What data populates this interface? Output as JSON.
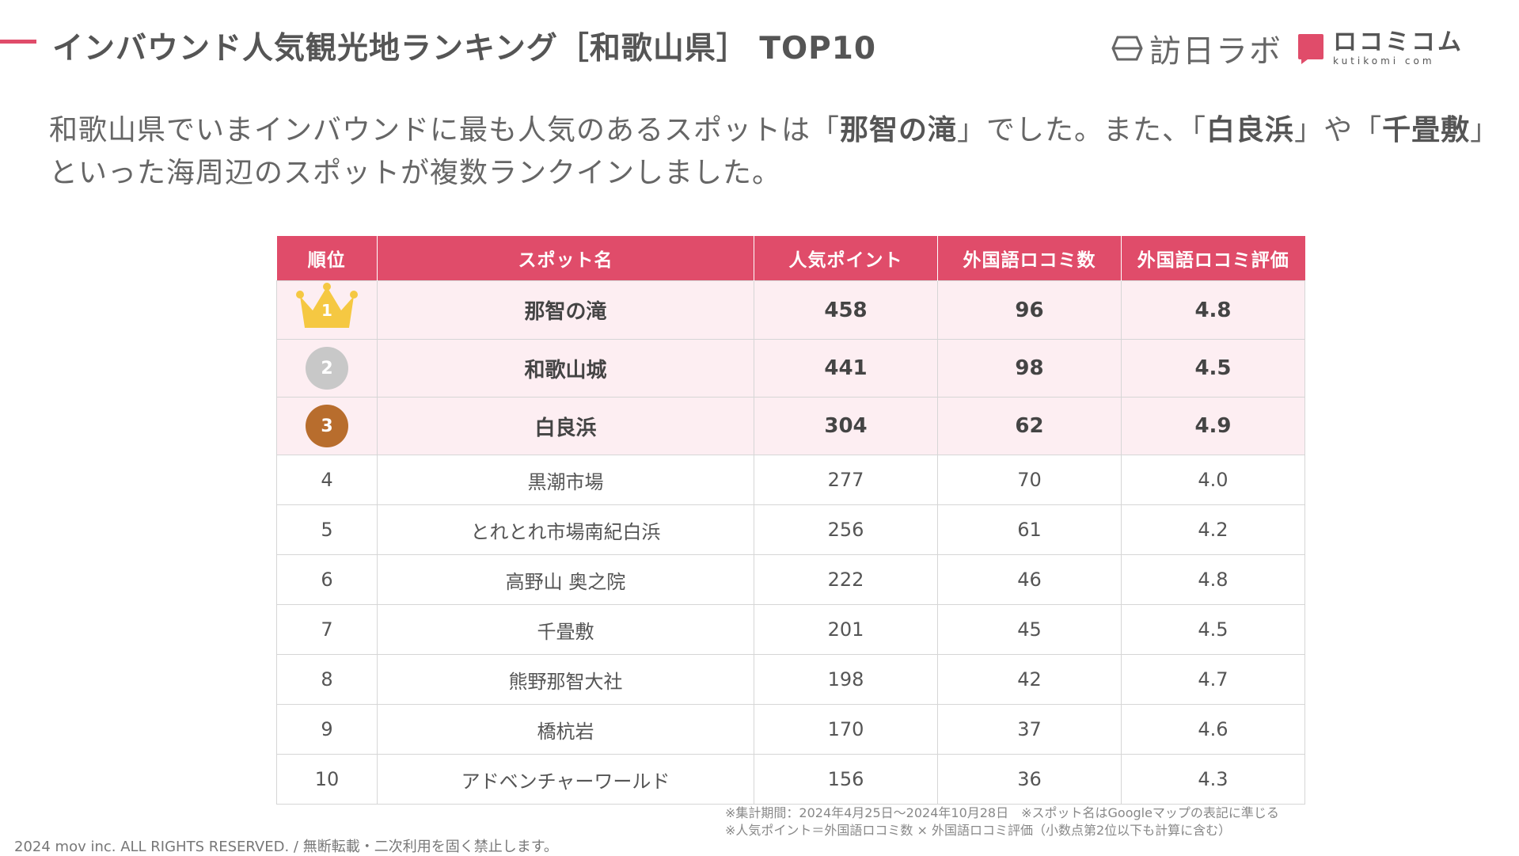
{
  "header": {
    "title": "インバウンド人気観光地ランキング［和歌山県］ TOP10",
    "logo_homonichi": "訪日ラボ",
    "logo_kuchikomi_main": "ロコミコム",
    "logo_kuchikomi_sub": "kutikomi com"
  },
  "lead": {
    "p1": "和歌山県でいまインバウンドに最も人気のあるスポットは「",
    "b1": "那智の滝",
    "p2": "」でした。また、「",
    "b2": "白良浜",
    "p3": "」や「",
    "b3": "千畳敷",
    "p4": "」といった海周辺のスポットが複数ランクインしました。"
  },
  "table": {
    "headers": [
      "順位",
      "スポット名",
      "人気ポイント",
      "外国語ロコミ数",
      "外国語ロコミ評価"
    ],
    "rows": [
      {
        "rank": "1",
        "name": "那智の滝",
        "points": "458",
        "reviews": "96",
        "rating": "4.8",
        "medal": "gold-crown"
      },
      {
        "rank": "2",
        "name": "和歌山城",
        "points": "441",
        "reviews": "98",
        "rating": "4.5",
        "medal": "silver"
      },
      {
        "rank": "3",
        "name": "白良浜",
        "points": "304",
        "reviews": "62",
        "rating": "4.9",
        "medal": "bronze"
      },
      {
        "rank": "4",
        "name": "黒潮市場",
        "points": "277",
        "reviews": "70",
        "rating": "4.0"
      },
      {
        "rank": "5",
        "name": "とれとれ市場南紀白浜",
        "points": "256",
        "reviews": "61",
        "rating": "4.2"
      },
      {
        "rank": "6",
        "name": "高野山 奥之院",
        "points": "222",
        "reviews": "46",
        "rating": "4.8"
      },
      {
        "rank": "7",
        "name": "千畳敷",
        "points": "201",
        "reviews": "45",
        "rating": "4.5"
      },
      {
        "rank": "8",
        "name": "熊野那智大社",
        "points": "198",
        "reviews": "42",
        "rating": "4.7"
      },
      {
        "rank": "9",
        "name": "橋杭岩",
        "points": "170",
        "reviews": "37",
        "rating": "4.6"
      },
      {
        "rank": "10",
        "name": "アドベンチャーワールド",
        "points": "156",
        "reviews": "36",
        "rating": "4.3"
      }
    ]
  },
  "notes": {
    "line1": "※集計期間：2024年4月25日〜2024年10月28日　※スポット名はGoogleマップの表記に準じる",
    "line2": "※人気ポイント＝外国語ロコミ数 × 外国語ロコミ評価（小数点第2位以下も計算に含む）"
  },
  "footer": {
    "copyright": "2024 mov inc. ALL RIGHTS RESERVED. / 無断転載・二次利用を固く禁止します。"
  },
  "colors": {
    "accent": "#e04c6a",
    "top_row_bg": "#fdeef2",
    "gold": "#f5c842",
    "silver": "#c8c8c8",
    "bronze": "#b86d2d"
  }
}
